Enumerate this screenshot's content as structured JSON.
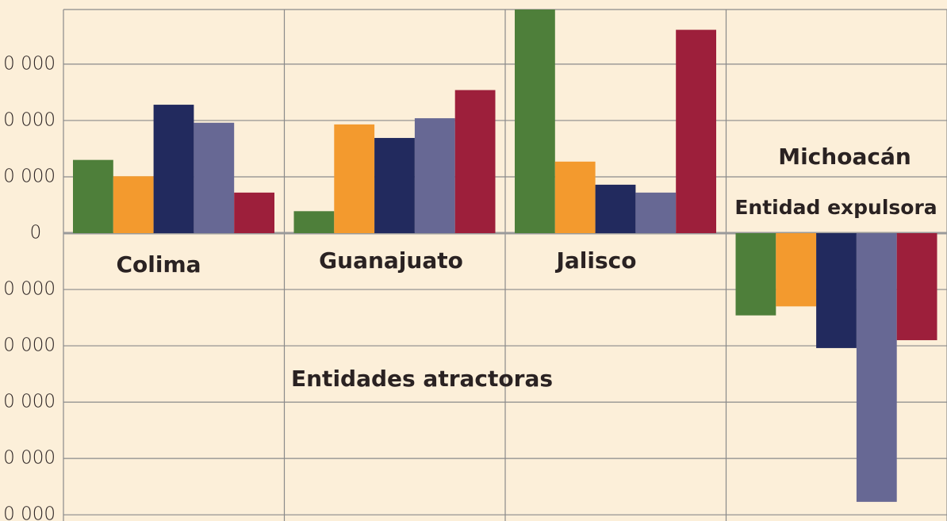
{
  "chart_data": {
    "type": "bar",
    "categories": [
      "Colima",
      "Guanajuato",
      "Jalisco",
      "Michoacán"
    ],
    "annotations": [
      "Entidades atractoras",
      "Entidad expulsora"
    ],
    "series": [
      {
        "color": "#4e7f3a",
        "values": [
          13000,
          3900,
          39700,
          -14600
        ]
      },
      {
        "color": "#f39a2e",
        "values": [
          10100,
          19300,
          12700,
          -13000
        ]
      },
      {
        "color": "#222a5e",
        "values": [
          22800,
          16900,
          8600,
          -20400
        ]
      },
      {
        "color": "#676894",
        "values": [
          19600,
          20400,
          7200,
          -47700
        ]
      },
      {
        "color": "#9d1f3b",
        "values": [
          7200,
          25400,
          36100,
          -19000
        ]
      }
    ],
    "ylim": [
      -51100,
      39700
    ],
    "yticks": [
      {
        "value": 30000,
        "label": "0 000"
      },
      {
        "value": 20000,
        "label": "0 000"
      },
      {
        "value": 10000,
        "label": "0 000"
      },
      0,
      {
        "value": -10000,
        "label": "0 000"
      },
      {
        "value": -20000,
        "label": "0 000"
      },
      {
        "value": -30000,
        "label": "0 000"
      },
      {
        "value": -40000,
        "label": "0 000"
      },
      {
        "value": -50000,
        "label": "0 000"
      }
    ],
    "grid": true
  }
}
